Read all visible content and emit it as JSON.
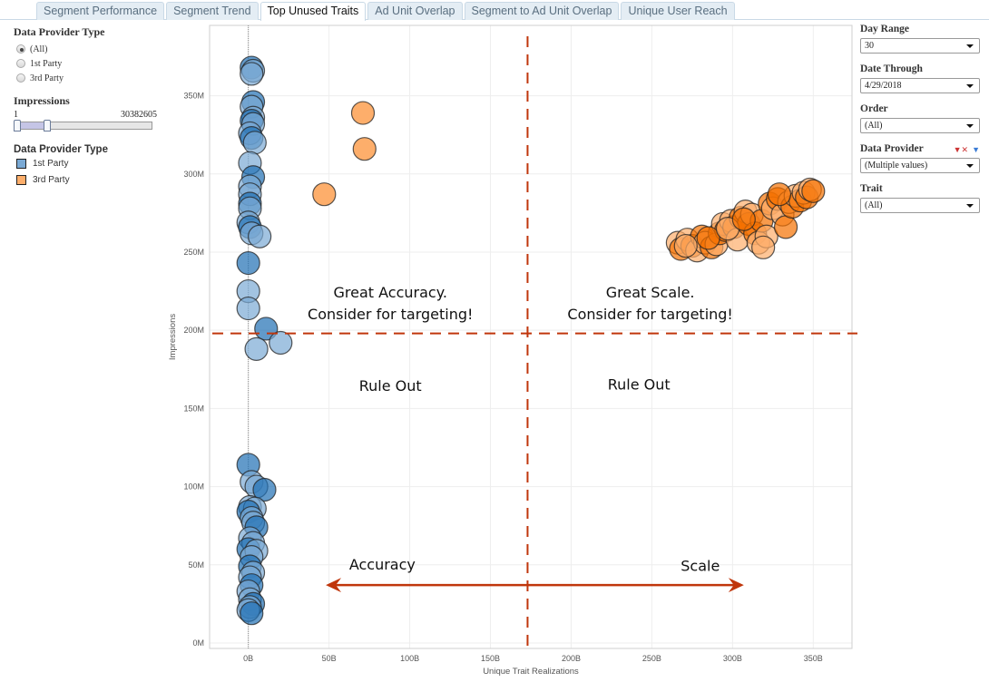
{
  "tabs": [
    {
      "label": "Segment Performance",
      "active": false
    },
    {
      "label": "Segment Trend",
      "active": false
    },
    {
      "label": "Top Unused Traits",
      "active": true
    },
    {
      "label": "Ad Unit Overlap",
      "active": false
    },
    {
      "label": "Segment to Ad Unit Overlap",
      "active": false
    },
    {
      "label": "Unique User Reach",
      "active": false
    }
  ],
  "left_panel": {
    "provider_filter": {
      "title": "Data Provider Type",
      "options": [
        {
          "label": "(All)",
          "checked": true
        },
        {
          "label": "1st Party",
          "checked": false
        },
        {
          "label": "3rd Party",
          "checked": false
        }
      ]
    },
    "impressions": {
      "title": "Impressions",
      "min_label": "1",
      "max_label": "30382605",
      "range_fraction": [
        0.0,
        0.22
      ]
    },
    "legend": {
      "title": "Data Provider Type",
      "items": [
        {
          "label": "1st Party",
          "color": "#7aa9d4"
        },
        {
          "label": "3rd Party",
          "color": "#fdae6b"
        }
      ]
    }
  },
  "right_panel": {
    "filters": [
      {
        "label": "Day Range",
        "value": "30"
      },
      {
        "label": "Date Through",
        "value": "4/29/2018"
      },
      {
        "label": "Order",
        "value": "(All)"
      },
      {
        "label": "Data Provider",
        "value": "(Multiple values)",
        "has_icons": true
      },
      {
        "label": "Trait",
        "value": "(All)"
      }
    ]
  },
  "chart_data": {
    "type": "scatter",
    "title": "",
    "xlabel": "Unique Trait Realizations",
    "ylabel": "Impressions",
    "xlim": [
      -24,
      374
    ],
    "ylim": [
      -3.5,
      395
    ],
    "x_unit": "B",
    "y_unit": "M",
    "x_ticks": [
      "0B",
      "50B",
      "100B",
      "150B",
      "200B",
      "250B",
      "300B",
      "350B"
    ],
    "x_tick_values": [
      0,
      50,
      100,
      150,
      200,
      250,
      300,
      350
    ],
    "y_ticks": [
      "0M",
      "50M",
      "100M",
      "150M",
      "200M",
      "250M",
      "300M",
      "350M"
    ],
    "y_tick_values": [
      0,
      50,
      100,
      150,
      200,
      250,
      300,
      350
    ],
    "grid": true,
    "reference_lines": {
      "x": 173,
      "y": 198,
      "color": "#c0360c",
      "style": "dashed"
    },
    "annotations": [
      {
        "text": "Great Accuracy.",
        "x": 88,
        "y": 224
      },
      {
        "text": "Consider for targeting!",
        "x": 88,
        "y": 210
      },
      {
        "text": "Great Scale.",
        "x": 249,
        "y": 224
      },
      {
        "text": "Consider for targeting!",
        "x": 249,
        "y": 210
      },
      {
        "text": "Rule Out",
        "x": 88,
        "y": 164
      },
      {
        "text": "Rule Out",
        "x": 242,
        "y": 165
      },
      {
        "text": "Accuracy",
        "x": 83,
        "y": 50
      },
      {
        "text": "Scale",
        "x": 280,
        "y": 49
      }
    ],
    "arrow": {
      "from_x": 48,
      "to_x": 307,
      "y": 37,
      "color": "#c0360c"
    },
    "series": [
      {
        "name": "1st Party",
        "color": "#3c82c0",
        "points": [
          [
            2,
            368
          ],
          [
            3,
            366
          ],
          [
            2,
            364
          ],
          [
            3,
            346
          ],
          [
            2,
            343
          ],
          [
            3,
            336
          ],
          [
            2,
            334
          ],
          [
            3,
            332
          ],
          [
            1,
            326
          ],
          [
            2,
            323
          ],
          [
            4,
            320
          ],
          [
            1,
            307
          ],
          [
            3,
            298
          ],
          [
            1,
            292
          ],
          [
            1,
            287
          ],
          [
            1,
            281
          ],
          [
            1,
            278
          ],
          [
            0,
            269
          ],
          [
            1,
            266
          ],
          [
            2,
            262
          ],
          [
            7,
            260
          ],
          [
            0,
            243
          ],
          [
            0,
            225
          ],
          [
            0,
            214
          ],
          [
            11,
            201
          ],
          [
            20,
            192
          ],
          [
            5,
            188
          ],
          [
            0,
            114
          ],
          [
            2,
            103
          ],
          [
            5,
            100
          ],
          [
            10,
            98
          ],
          [
            1,
            87
          ],
          [
            4,
            86
          ],
          [
            0,
            84
          ],
          [
            2,
            80
          ],
          [
            3,
            77
          ],
          [
            5,
            74
          ],
          [
            1,
            67
          ],
          [
            3,
            64
          ],
          [
            0,
            60
          ],
          [
            5,
            59
          ],
          [
            2,
            55
          ],
          [
            1,
            49
          ],
          [
            3,
            45
          ],
          [
            1,
            42
          ],
          [
            2,
            37
          ],
          [
            0,
            33
          ],
          [
            1,
            28
          ],
          [
            3,
            25
          ],
          [
            1,
            23
          ],
          [
            0,
            21
          ],
          [
            2,
            19
          ]
        ]
      },
      {
        "name": "3rd Party",
        "color": "#fd8d3c",
        "points": [
          [
            71,
            339
          ],
          [
            72,
            316
          ],
          [
            47,
            287
          ],
          [
            266,
            256
          ],
          [
            268,
            252
          ],
          [
            272,
            258
          ],
          [
            275,
            254
          ],
          [
            278,
            251
          ],
          [
            281,
            260
          ],
          [
            283,
            256
          ],
          [
            287,
            253
          ],
          [
            290,
            255
          ],
          [
            292,
            262
          ],
          [
            294,
            268
          ],
          [
            296,
            264
          ],
          [
            299,
            270
          ],
          [
            301,
            266
          ],
          [
            303,
            258
          ],
          [
            305,
            272
          ],
          [
            308,
            276
          ],
          [
            310,
            268
          ],
          [
            312,
            274
          ],
          [
            314,
            262
          ],
          [
            316,
            256
          ],
          [
            318,
            270
          ],
          [
            321,
            260
          ],
          [
            323,
            281
          ],
          [
            325,
            278
          ],
          [
            328,
            284
          ],
          [
            331,
            274
          ],
          [
            333,
            266
          ],
          [
            335,
            282
          ],
          [
            337,
            279
          ],
          [
            339,
            286
          ],
          [
            342,
            283
          ],
          [
            344,
            288
          ],
          [
            346,
            285
          ],
          [
            348,
            290
          ],
          [
            350,
            289
          ],
          [
            271,
            254
          ],
          [
            285,
            259
          ],
          [
            297,
            265
          ],
          [
            307,
            271
          ],
          [
            319,
            253
          ],
          [
            329,
            287
          ]
        ]
      }
    ]
  }
}
